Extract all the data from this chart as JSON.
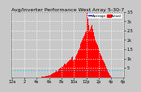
{
  "title": "Avg/Inverter Performance West Array 5-30-7",
  "bg_color": "#c8c8c8",
  "plot_bg_color": "#c8c8c8",
  "bar_color": "#ff0000",
  "avg_line_color": "#00ccff",
  "vline_color": "#ff0000",
  "legend_actual_color": "#ff0000",
  "legend_avg_color": "#0000ff",
  "ylim": [
    0,
    3500
  ],
  "ytick_vals": [
    500,
    1000,
    1500,
    2000,
    2500,
    3000,
    3500
  ],
  "ytick_labels": [
    "5",
    "1k",
    "1.5",
    "2k",
    "2.5",
    "3k",
    "3.5"
  ],
  "avg_power": 350,
  "title_fontsize": 4.5,
  "tick_fontsize": 3.5,
  "vline_x": 96,
  "xtick_positions": [
    0,
    16,
    32,
    48,
    64,
    80,
    96,
    112,
    128,
    143
  ],
  "xtick_labels": [
    "12a",
    "2",
    "4a",
    "6a",
    "8a",
    "10a",
    "12p",
    "2p",
    "4p",
    "6p"
  ],
  "power_data": [
    0,
    0,
    0,
    0,
    0,
    0,
    0,
    0,
    0,
    0,
    0,
    0,
    0,
    0,
    0,
    0,
    0,
    0,
    0,
    0,
    0,
    0,
    0,
    0,
    0,
    0,
    0,
    0,
    0,
    0,
    0,
    0,
    0,
    0,
    0,
    0,
    0,
    0,
    10,
    20,
    30,
    15,
    25,
    40,
    60,
    80,
    50,
    70,
    90,
    110,
    130,
    150,
    200,
    180,
    220,
    250,
    300,
    350,
    280,
    320,
    400,
    450,
    500,
    480,
    520,
    600,
    550,
    650,
    700,
    720,
    680,
    750,
    800,
    850,
    900,
    950,
    1000,
    1050,
    1100,
    900,
    950,
    1000,
    1100,
    1200,
    1300,
    1400,
    1500,
    1600,
    1700,
    1800,
    1900,
    2000,
    2100,
    2200,
    2300,
    2400,
    2500,
    2600,
    3200,
    2800,
    2500,
    2600,
    2700,
    2800,
    2600,
    2400,
    2200,
    2000,
    1900,
    1800,
    1700,
    1600,
    1500,
    1400,
    1300,
    1200,
    1100,
    1000,
    900,
    800,
    700,
    600,
    500,
    400,
    300,
    200,
    100,
    50,
    20,
    0,
    0,
    0,
    0,
    0,
    0,
    0,
    0,
    0,
    0,
    0,
    0,
    0,
    0,
    0,
    0
  ]
}
